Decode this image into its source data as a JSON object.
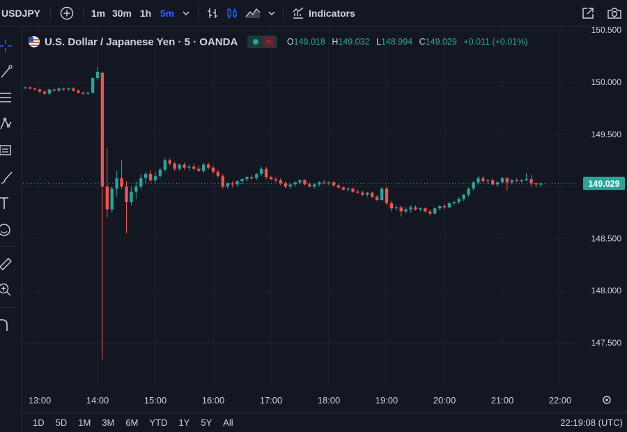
{
  "toolbar": {
    "symbol": "USDJPY",
    "intervals": [
      "1m",
      "30m",
      "1h",
      "5m"
    ],
    "active_interval": "5m",
    "indicators_label": "Indicators"
  },
  "legend": {
    "title": "U.S. Dollar / Japanese Yen · 5 · OANDA",
    "open_key": "O",
    "open": "149.018",
    "high_key": "H",
    "high": "149.032",
    "low_key": "L",
    "low": "148.994",
    "close_key": "C",
    "close": "149.029",
    "change": "+0.011 (+0.01%)"
  },
  "bottombar": {
    "ranges": [
      "1D",
      "5D",
      "1M",
      "3M",
      "6M",
      "YTD",
      "1Y",
      "5Y",
      "All"
    ],
    "clock": "22:19:08 (UTC)"
  },
  "colors": {
    "up": "#26a69a",
    "down": "#ef5350",
    "bg": "#131722",
    "grid": "#1e222d",
    "last_price": "#26a69a"
  },
  "chart_data": {
    "type": "candlestick",
    "x_ticks": [
      "13:00",
      "14:00",
      "15:00",
      "16:00",
      "17:00",
      "18:00",
      "19:00",
      "20:00",
      "21:00",
      "22:00"
    ],
    "y_ticks": [
      "147.500",
      "148.000",
      "148.500",
      "149.000",
      "149.500",
      "150.000",
      "150.500"
    ],
    "ylim": [
      147.0,
      150.55
    ],
    "last_price": "149.029",
    "candles": [
      [
        "12:45",
        149.95,
        149.96,
        149.94,
        149.95
      ],
      [
        "12:50",
        149.95,
        149.96,
        149.93,
        149.94
      ],
      [
        "12:55",
        149.94,
        149.95,
        149.92,
        149.93
      ],
      [
        "13:00",
        149.93,
        149.94,
        149.9,
        149.91
      ],
      [
        "13:05",
        149.91,
        149.92,
        149.88,
        149.89
      ],
      [
        "13:10",
        149.89,
        149.94,
        149.88,
        149.93
      ],
      [
        "13:15",
        149.93,
        149.94,
        149.91,
        149.92
      ],
      [
        "13:20",
        149.92,
        149.95,
        149.91,
        149.94
      ],
      [
        "13:25",
        149.94,
        149.95,
        149.92,
        149.93
      ],
      [
        "13:30",
        149.93,
        149.95,
        149.92,
        149.94
      ],
      [
        "13:35",
        149.94,
        149.95,
        149.91,
        149.92
      ],
      [
        "13:40",
        149.92,
        149.93,
        149.89,
        149.9
      ],
      [
        "13:45",
        149.9,
        149.91,
        149.88,
        149.89
      ],
      [
        "13:50",
        149.89,
        149.91,
        149.88,
        149.9
      ],
      [
        "13:55",
        149.9,
        150.05,
        149.89,
        150.04
      ],
      [
        "14:00",
        150.04,
        150.15,
        150.02,
        150.1
      ],
      [
        "14:05",
        150.09,
        150.1,
        147.34,
        149.0
      ],
      [
        "14:10",
        149.0,
        149.37,
        148.7,
        148.78
      ],
      [
        "14:15",
        148.78,
        149.0,
        148.75,
        148.98
      ],
      [
        "14:20",
        148.98,
        149.15,
        148.9,
        149.08
      ],
      [
        "14:25",
        149.08,
        149.25,
        148.98,
        149.0
      ],
      [
        "14:30",
        149.0,
        149.05,
        148.55,
        148.85
      ],
      [
        "14:35",
        148.85,
        149.0,
        148.82,
        148.95
      ],
      [
        "14:40",
        148.95,
        149.05,
        148.88,
        149.0
      ],
      [
        "14:45",
        149.0,
        149.12,
        148.97,
        149.08
      ],
      [
        "14:50",
        149.08,
        149.14,
        149.02,
        149.12
      ],
      [
        "14:55",
        149.12,
        149.16,
        149.04,
        149.06
      ],
      [
        "15:00",
        149.06,
        149.14,
        149.03,
        149.1
      ],
      [
        "15:05",
        149.1,
        149.18,
        149.08,
        149.16
      ],
      [
        "15:10",
        149.16,
        149.28,
        149.14,
        149.25
      ],
      [
        "15:15",
        149.25,
        149.27,
        149.2,
        149.22
      ],
      [
        "15:20",
        149.22,
        149.24,
        149.15,
        149.17
      ],
      [
        "15:25",
        149.17,
        149.22,
        149.15,
        149.21
      ],
      [
        "15:30",
        149.21,
        149.23,
        149.16,
        149.18
      ],
      [
        "15:35",
        149.18,
        149.21,
        149.15,
        149.19
      ],
      [
        "15:40",
        149.19,
        149.22,
        149.15,
        149.17
      ],
      [
        "15:45",
        149.17,
        149.2,
        149.14,
        149.15
      ],
      [
        "15:50",
        149.15,
        149.23,
        149.13,
        149.21
      ],
      [
        "15:55",
        149.21,
        149.23,
        149.16,
        149.18
      ],
      [
        "16:00",
        149.18,
        149.2,
        149.12,
        149.14
      ],
      [
        "16:05",
        149.14,
        149.16,
        149.08,
        149.1
      ],
      [
        "16:10",
        149.1,
        149.12,
        148.98,
        149.0
      ],
      [
        "16:15",
        149.0,
        149.04,
        148.98,
        149.03
      ],
      [
        "16:20",
        149.03,
        149.05,
        148.99,
        149.02
      ],
      [
        "16:25",
        149.02,
        149.06,
        149.0,
        149.05
      ],
      [
        "16:30",
        149.05,
        149.08,
        149.02,
        149.07
      ],
      [
        "16:35",
        149.07,
        149.1,
        149.05,
        149.09
      ],
      [
        "16:40",
        149.09,
        149.11,
        149.06,
        149.08
      ],
      [
        "16:45",
        149.08,
        149.13,
        149.06,
        149.12
      ],
      [
        "16:50",
        149.12,
        149.19,
        149.1,
        149.17
      ],
      [
        "16:55",
        149.17,
        149.19,
        149.07,
        149.09
      ],
      [
        "17:00",
        149.09,
        149.1,
        149.06,
        149.07
      ],
      [
        "17:05",
        149.07,
        149.09,
        149.04,
        149.06
      ],
      [
        "17:10",
        149.06,
        149.08,
        149.01,
        149.03
      ],
      [
        "17:15",
        149.03,
        149.05,
        148.98,
        149.0
      ],
      [
        "17:20",
        149.0,
        149.03,
        148.98,
        149.02
      ],
      [
        "17:25",
        149.02,
        149.05,
        149.0,
        149.04
      ],
      [
        "17:30",
        149.04,
        149.07,
        149.02,
        149.06
      ],
      [
        "17:35",
        149.06,
        149.07,
        149.01,
        149.02
      ],
      [
        "17:40",
        149.02,
        149.04,
        148.99,
        149.0
      ],
      [
        "17:45",
        149.0,
        149.03,
        148.98,
        149.02
      ],
      [
        "17:50",
        149.02,
        149.05,
        149.0,
        149.04
      ],
      [
        "17:55",
        149.04,
        149.06,
        149.02,
        149.03
      ],
      [
        "18:00",
        149.03,
        149.05,
        149.01,
        149.04
      ],
      [
        "18:05",
        149.04,
        149.05,
        149.0,
        149.01
      ],
      [
        "18:10",
        149.01,
        149.02,
        148.98,
        148.99
      ],
      [
        "18:15",
        148.99,
        149.0,
        148.96,
        148.97
      ],
      [
        "18:20",
        148.97,
        148.99,
        148.95,
        148.98
      ],
      [
        "18:25",
        148.98,
        148.99,
        148.94,
        148.95
      ],
      [
        "18:30",
        148.95,
        148.97,
        148.93,
        148.94
      ],
      [
        "18:35",
        148.94,
        148.96,
        148.91,
        148.92
      ],
      [
        "18:40",
        148.92,
        148.95,
        148.9,
        148.94
      ],
      [
        "18:45",
        148.94,
        148.95,
        148.89,
        148.9
      ],
      [
        "18:50",
        148.9,
        148.92,
        148.86,
        148.87
      ],
      [
        "18:55",
        148.87,
        148.99,
        148.86,
        148.98
      ],
      [
        "19:00",
        148.98,
        149.0,
        148.82,
        148.84
      ],
      [
        "19:05",
        148.84,
        148.86,
        148.76,
        148.79
      ],
      [
        "19:10",
        148.79,
        148.82,
        148.77,
        148.8
      ],
      [
        "19:15",
        148.8,
        148.82,
        148.71,
        148.76
      ],
      [
        "19:20",
        148.76,
        148.8,
        148.74,
        148.78
      ],
      [
        "19:25",
        148.78,
        148.82,
        148.75,
        148.8
      ],
      [
        "19:30",
        148.8,
        148.82,
        148.77,
        148.78
      ],
      [
        "19:35",
        148.78,
        148.8,
        148.76,
        148.79
      ],
      [
        "19:40",
        148.79,
        148.8,
        148.75,
        148.76
      ],
      [
        "19:45",
        148.76,
        148.78,
        148.72,
        148.74
      ],
      [
        "19:50",
        148.74,
        148.8,
        148.73,
        148.79
      ],
      [
        "19:55",
        148.79,
        148.82,
        148.77,
        148.81
      ],
      [
        "20:00",
        148.81,
        148.83,
        148.78,
        148.8
      ],
      [
        "20:05",
        148.8,
        148.85,
        148.79,
        148.84
      ],
      [
        "20:10",
        148.84,
        148.86,
        148.82,
        148.85
      ],
      [
        "20:15",
        148.85,
        148.9,
        148.83,
        148.88
      ],
      [
        "20:20",
        148.88,
        148.93,
        148.86,
        148.92
      ],
      [
        "20:25",
        148.92,
        148.99,
        148.9,
        148.98
      ],
      [
        "20:30",
        148.98,
        149.05,
        148.96,
        149.04
      ],
      [
        "20:35",
        149.04,
        149.1,
        149.02,
        149.08
      ],
      [
        "20:40",
        149.08,
        149.1,
        149.03,
        149.05
      ],
      [
        "20:45",
        149.05,
        149.07,
        149.02,
        149.06
      ],
      [
        "20:50",
        149.06,
        149.08,
        149.01,
        149.02
      ],
      [
        "20:55",
        149.02,
        149.05,
        149.0,
        149.04
      ],
      [
        "21:00",
        149.04,
        149.09,
        149.03,
        149.08
      ],
      [
        "21:05",
        149.08,
        149.09,
        148.96,
        149.04
      ],
      [
        "21:10",
        149.04,
        149.07,
        149.02,
        149.06
      ],
      [
        "21:15",
        149.06,
        149.08,
        149.04,
        149.05
      ],
      [
        "21:20",
        149.05,
        149.07,
        149.03,
        149.06
      ],
      [
        "21:25",
        149.06,
        149.13,
        149.05,
        149.07
      ],
      [
        "21:30",
        149.07,
        149.11,
        149.0,
        149.03
      ],
      [
        "21:35",
        149.03,
        149.04,
        148.99,
        149.02
      ],
      [
        "21:40",
        149.018,
        149.032,
        148.994,
        149.029
      ]
    ]
  }
}
